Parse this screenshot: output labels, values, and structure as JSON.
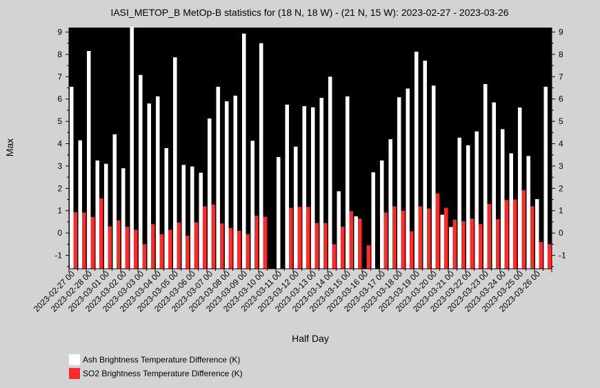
{
  "chart_data": {
    "type": "bar",
    "title": "IASI_METOP_B MetOp-B statistics for (18 N, 18 W) - (21 N, 15 W): 2023-02-27 - 2023-03-26",
    "xlabel": "Half Day",
    "ylabel": "Max",
    "ylim": [
      -1.6,
      9.2
    ],
    "yticks": [
      -1,
      0,
      1,
      2,
      3,
      4,
      5,
      6,
      7,
      8,
      9
    ],
    "x_tick_labels": [
      "2023-02-27 00",
      "2023-02-28 00",
      "2023-03-01 00",
      "2023-03-02 00",
      "2023-03-03 00",
      "2023-03-04 00",
      "2023-03-05 00",
      "2023-03-06 00",
      "2023-03-07 00",
      "2023-03-08 00",
      "2023-03-09 00",
      "2023-03-10 00",
      "2023-03-11 00",
      "2023-03-12 00",
      "2023-03-13 00",
      "2023-03-14 00",
      "2023-03-15 00",
      "2023-03-16 00",
      "2023-03-17 00",
      "2023-03-18 00",
      "2023-03-19 00",
      "2023-03-20 00",
      "2023-03-21 00",
      "2023-03-22 00",
      "2023-03-23 00",
      "2023-03-24 00",
      "2023-03-25 00",
      "2023-03-26 00"
    ],
    "legend_position": "bottom-left",
    "series": [
      {
        "name": "Ash Brightness Temperature Difference (K)",
        "color": "#ffffff",
        "values": [
          6.55,
          4.15,
          8.15,
          3.25,
          3.1,
          4.42,
          2.9,
          9.22,
          7.08,
          5.8,
          6.12,
          3.8,
          7.87,
          3.05,
          2.98,
          2.7,
          5.13,
          6.55,
          5.9,
          6.15,
          8.93,
          4.13,
          8.5,
          null,
          3.4,
          5.75,
          3.87,
          5.68,
          5.63,
          6.05,
          7.0,
          1.87,
          6.12,
          0.75,
          null,
          2.72,
          3.25,
          4.2,
          6.08,
          6.47,
          8.12,
          7.72,
          6.6,
          0.82,
          0.27,
          4.27,
          3.93,
          4.55,
          6.67,
          5.85,
          4.65,
          3.57,
          5.62,
          3.45,
          1.52,
          6.55
        ]
      },
      {
        "name": "SO2 Brightness Temperature Difference (K)",
        "color": "#ff2a2a",
        "values": [
          0.93,
          0.92,
          0.72,
          1.55,
          0.3,
          0.57,
          0.28,
          0.15,
          -0.5,
          0.4,
          -0.05,
          0.15,
          0.47,
          -0.12,
          0.48,
          1.2,
          1.28,
          0.43,
          0.23,
          0.1,
          -0.05,
          0.78,
          0.73,
          null,
          null,
          1.13,
          1.17,
          1.17,
          0.45,
          0.45,
          -0.5,
          0.28,
          0.98,
          0.65,
          -0.55,
          null,
          0.92,
          1.2,
          1.0,
          0.08,
          1.2,
          1.1,
          1.78,
          1.13,
          0.6,
          0.53,
          0.65,
          0.4,
          1.3,
          0.62,
          1.48,
          1.5,
          1.92,
          1.2,
          -0.4,
          -0.5
        ]
      }
    ]
  }
}
